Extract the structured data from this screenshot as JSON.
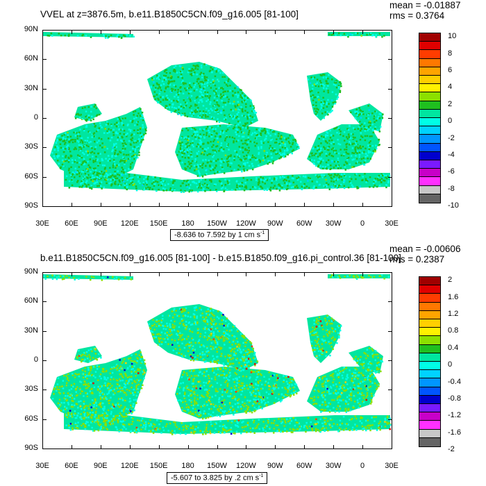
{
  "panel1": {
    "title": "VVEL at z=3876.5m, b.e11.B1850C5CN.f09_g16.005 [81-100]",
    "mean": "mean = -0.01887",
    "rms": "rms = 0.3764",
    "range_label": "-8.636 to 7.592 by 1 cm s",
    "range_unit_exp": "-1",
    "colorbar_labels": [
      "10",
      "8",
      "6",
      "4",
      "2",
      "0",
      "-2",
      "-4",
      "-6",
      "-8",
      "-10"
    ]
  },
  "panel2": {
    "title": "b.e11.B1850C5CN.f09_g16.005 [81-100] - b.e15.B1850.f09_g16.pi_control.36 [81-100]",
    "mean": "mean = -0.00606",
    "rms": "rms = 0.2387",
    "range_label": "-5.607 to 3.825 by .2 cm s",
    "range_unit_exp": "-1",
    "colorbar_labels": [
      "2",
      "1.6",
      "1.2",
      "0.8",
      "0.4",
      "0",
      "-0.4",
      "-0.8",
      "-1.2",
      "-1.6",
      "-2"
    ]
  },
  "lat_labels": [
    "90N",
    "60N",
    "30N",
    "0",
    "30S",
    "60S",
    "90S"
  ],
  "lon_labels": [
    "30E",
    "60E",
    "90E",
    "120E",
    "150E",
    "180",
    "150W",
    "120W",
    "90W",
    "60W",
    "30W",
    "0",
    "30E"
  ],
  "colorbar_colors": [
    "#a00000",
    "#e00000",
    "#ff3c00",
    "#ff7800",
    "#ffa400",
    "#ffcf00",
    "#fff200",
    "#8ce000",
    "#1fbf1f",
    "#00e6a0",
    "#00ffe6",
    "#00d2ff",
    "#0096ff",
    "#0055ff",
    "#0000cd",
    "#7a1aff",
    "#c800c8",
    "#ff30ff",
    "#c8c8c8",
    "#646464"
  ]
}
